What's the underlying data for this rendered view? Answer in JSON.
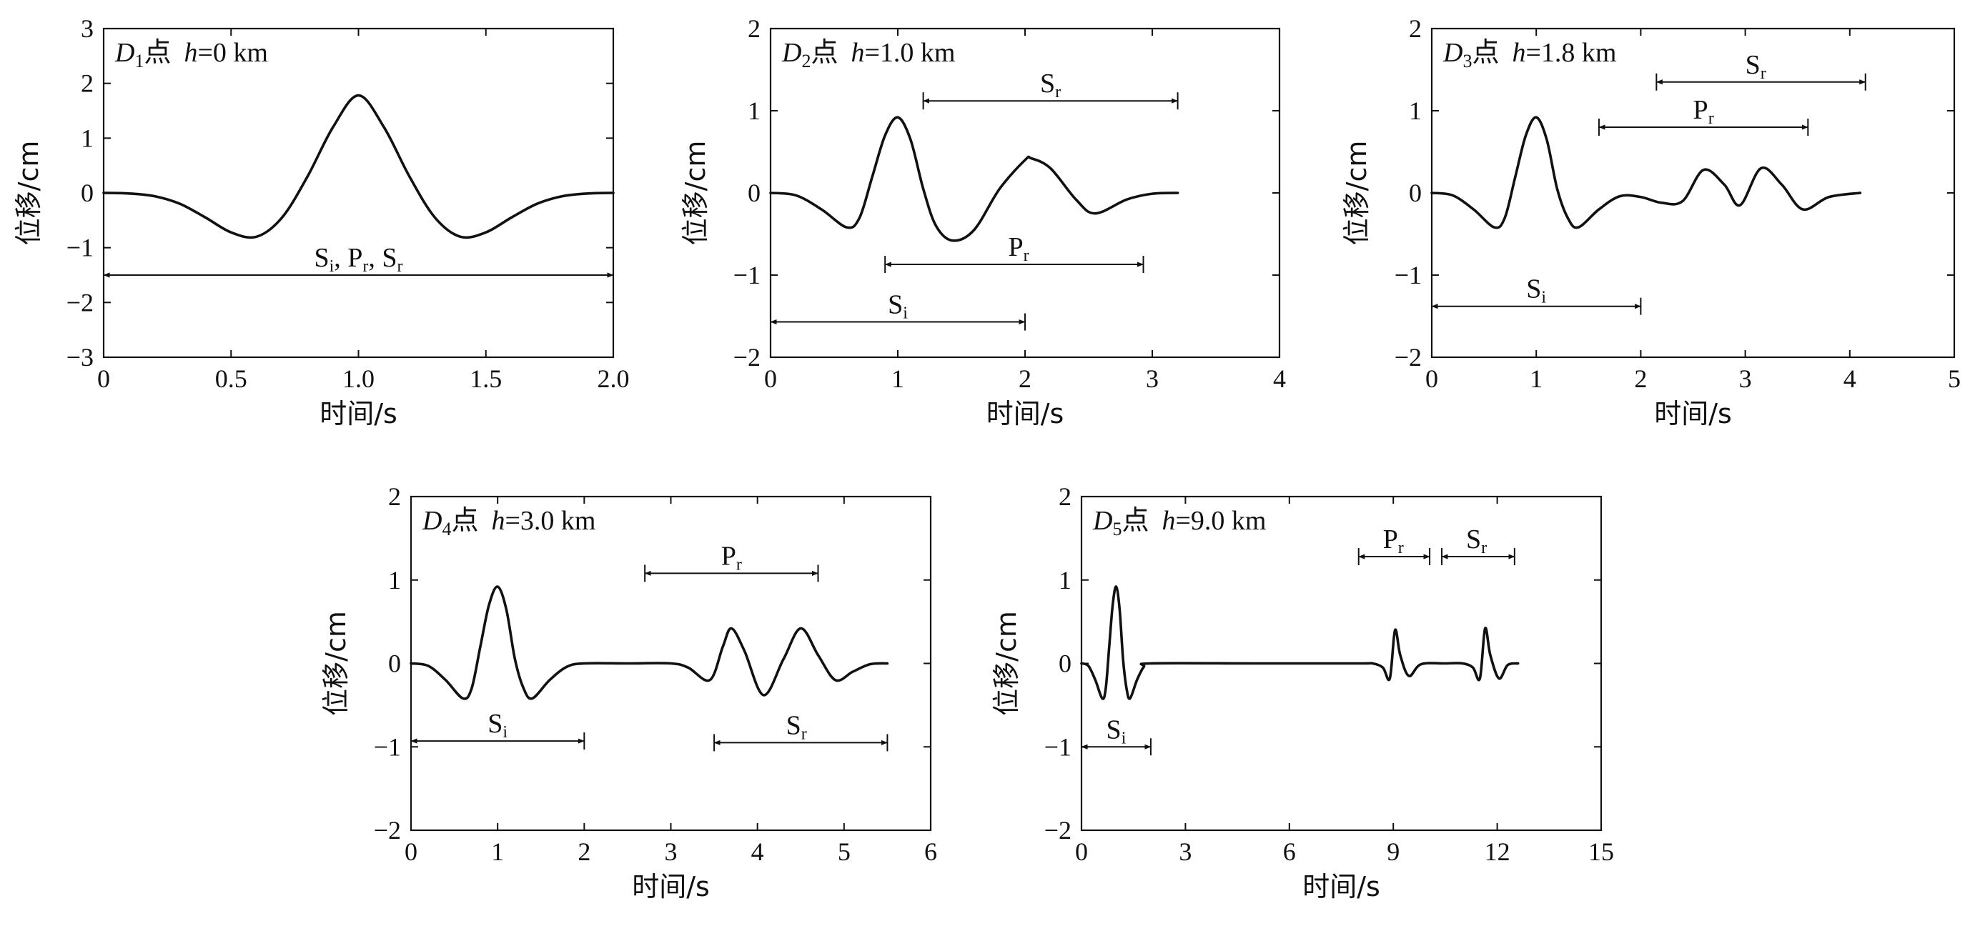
{
  "chart_data": [
    {
      "type": "line",
      "title": "",
      "panel": {
        "point": "D",
        "sub": "1",
        "suffix": "点",
        "h_var": "h",
        "h_text": "=0 km"
      },
      "xlabel": "时间/s",
      "ylabel": "位移/cm",
      "xlim": [
        0,
        2.0
      ],
      "ylim": [
        -3,
        3
      ],
      "xticks": [
        0,
        0.5,
        1.0,
        1.5,
        2.0
      ],
      "xtick_labels": [
        "0",
        "0.5",
        "1.0",
        "1.5",
        "2.0"
      ],
      "yticks": [
        -3,
        -2,
        -1,
        0,
        1,
        2,
        3
      ],
      "ytick_labels": [
        "−3",
        "−2",
        "−1",
        "0",
        "1",
        "2",
        "3"
      ],
      "series": [
        {
          "x": [
            0,
            0.1,
            0.2,
            0.3,
            0.4,
            0.5,
            0.6,
            0.7,
            0.8,
            0.9,
            1.0,
            1.1,
            1.2,
            1.3,
            1.4,
            1.5,
            1.6,
            1.7,
            1.8,
            1.9,
            2.0
          ],
          "y": [
            0,
            -0.01,
            -0.06,
            -0.2,
            -0.45,
            -0.72,
            -0.8,
            -0.45,
            0.3,
            1.2,
            1.78,
            1.2,
            0.3,
            -0.45,
            -0.8,
            -0.72,
            -0.45,
            -0.2,
            -0.06,
            -0.01,
            0
          ]
        }
      ],
      "annotations": [
        {
          "label": "S",
          "sub": "i",
          "rest": ", P",
          "sub2": "r",
          "rest2": ", S",
          "sub3": "r",
          "x0": 0,
          "x1": 2.0,
          "y": -1.5,
          "label_x": 1.0
        }
      ]
    },
    {
      "type": "line",
      "title": "",
      "panel": {
        "point": "D",
        "sub": "2",
        "suffix": "点",
        "h_var": "h",
        "h_text": "=1.0 km"
      },
      "xlabel": "时间/s",
      "ylabel": "位移/cm",
      "xlim": [
        0,
        4
      ],
      "ylim": [
        -2,
        2
      ],
      "xticks": [
        0,
        1,
        2,
        3,
        4
      ],
      "xtick_labels": [
        "0",
        "1",
        "2",
        "3",
        "4"
      ],
      "yticks": [
        -2,
        -1,
        0,
        1,
        2
      ],
      "ytick_labels": [
        "−2",
        "−1",
        "0",
        "1",
        "2"
      ],
      "series": [
        {
          "x": [
            0,
            0.2,
            0.4,
            0.6,
            0.7,
            0.8,
            0.9,
            1.0,
            1.1,
            1.2,
            1.3,
            1.43,
            1.6,
            1.8,
            2.0,
            2.05,
            2.2,
            2.4,
            2.55,
            2.8,
            3.0,
            3.2
          ],
          "y": [
            0,
            -0.03,
            -0.2,
            -0.42,
            -0.3,
            0.2,
            0.7,
            0.92,
            0.65,
            0.05,
            -0.4,
            -0.58,
            -0.45,
            0.05,
            0.4,
            0.42,
            0.3,
            -0.08,
            -0.25,
            -0.08,
            -0.01,
            0
          ]
        }
      ],
      "annotations": [
        {
          "label": "S",
          "sub": "r",
          "x0": 1.2,
          "x1": 3.2,
          "y": 1.12,
          "label_x": 2.2
        },
        {
          "label": "P",
          "sub": "r",
          "x0": 0.9,
          "x1": 2.93,
          "y": -0.87,
          "label_x": 1.95
        },
        {
          "label": "S",
          "sub": "i",
          "x0": 0,
          "x1": 2.0,
          "y": -1.57,
          "label_x": 1.0
        }
      ]
    },
    {
      "type": "line",
      "title": "",
      "panel": {
        "point": "D",
        "sub": "3",
        "suffix": "点",
        "h_var": "h",
        "h_text": "=1.8 km"
      },
      "xlabel": "时间/s",
      "ylabel": "位移/cm",
      "xlim": [
        0,
        5
      ],
      "ylim": [
        -2,
        2
      ],
      "xticks": [
        0,
        1,
        2,
        3,
        4,
        5
      ],
      "xtick_labels": [
        "0",
        "1",
        "2",
        "3",
        "4",
        "5"
      ],
      "yticks": [
        -2,
        -1,
        0,
        1,
        2
      ],
      "ytick_labels": [
        "−2",
        "−1",
        "0",
        "1",
        "2"
      ],
      "series": [
        {
          "x": [
            0,
            0.2,
            0.4,
            0.6,
            0.7,
            0.8,
            0.9,
            1.0,
            1.1,
            1.2,
            1.3,
            1.4,
            1.6,
            1.8,
            2.0,
            2.2,
            2.4,
            2.6,
            2.8,
            2.95,
            3.15,
            3.35,
            3.55,
            3.8,
            4.1
          ],
          "y": [
            0,
            -0.03,
            -0.2,
            -0.42,
            -0.3,
            0.2,
            0.7,
            0.92,
            0.65,
            0.05,
            -0.3,
            -0.42,
            -0.2,
            -0.04,
            -0.05,
            -0.12,
            -0.1,
            0.28,
            0.1,
            -0.15,
            0.3,
            0.1,
            -0.2,
            -0.05,
            0
          ]
        }
      ],
      "annotations": [
        {
          "label": "S",
          "sub": "r",
          "x0": 2.15,
          "x1": 4.15,
          "y": 1.35,
          "label_x": 3.1
        },
        {
          "label": "P",
          "sub": "r",
          "x0": 1.6,
          "x1": 3.6,
          "y": 0.8,
          "label_x": 2.6
        },
        {
          "label": "S",
          "sub": "i",
          "x0": 0,
          "x1": 2.0,
          "y": -1.38,
          "label_x": 1.0
        }
      ]
    },
    {
      "type": "line",
      "title": "",
      "panel": {
        "point": "D",
        "sub": "4",
        "suffix": "点",
        "h_var": "h",
        "h_text": "=3.0 km"
      },
      "xlabel": "时间/s",
      "ylabel": "位移/cm",
      "xlim": [
        0,
        6
      ],
      "ylim": [
        -2,
        2
      ],
      "xticks": [
        0,
        1,
        2,
        3,
        4,
        5,
        6
      ],
      "xtick_labels": [
        "0",
        "1",
        "2",
        "3",
        "4",
        "5",
        "6"
      ],
      "yticks": [
        -2,
        -1,
        0,
        1,
        2
      ],
      "ytick_labels": [
        "−2",
        "−1",
        "0",
        "1",
        "2"
      ],
      "series": [
        {
          "x": [
            0,
            0.2,
            0.4,
            0.6,
            0.7,
            0.8,
            0.9,
            1.0,
            1.1,
            1.2,
            1.3,
            1.4,
            1.6,
            1.8,
            2.0,
            2.5,
            3.0,
            3.2,
            3.45,
            3.6,
            3.7,
            3.85,
            4.07,
            4.3,
            4.5,
            4.7,
            4.9,
            5.1,
            5.3,
            5.5
          ],
          "y": [
            0,
            -0.03,
            -0.2,
            -0.42,
            -0.3,
            0.2,
            0.7,
            0.92,
            0.65,
            0.05,
            -0.3,
            -0.42,
            -0.2,
            -0.04,
            0,
            0,
            0,
            -0.05,
            -0.2,
            0.2,
            0.42,
            0.15,
            -0.38,
            0.05,
            0.42,
            0.1,
            -0.2,
            -0.1,
            -0.01,
            0
          ]
        }
      ],
      "annotations": [
        {
          "label": "P",
          "sub": "r",
          "x0": 2.7,
          "x1": 4.7,
          "y": 1.08,
          "label_x": 3.7
        },
        {
          "label": "S",
          "sub": "i",
          "x0": 0,
          "x1": 2.0,
          "y": -0.93,
          "label_x": 1.0
        },
        {
          "label": "S",
          "sub": "r",
          "x0": 3.5,
          "x1": 5.5,
          "y": -0.95,
          "label_x": 4.45
        }
      ]
    },
    {
      "type": "line",
      "title": "",
      "panel": {
        "point": "D",
        "sub": "5",
        "suffix": "点",
        "h_var": "h",
        "h_text": "=9.0 km"
      },
      "xlabel": "时间/s",
      "ylabel": "位移/cm",
      "xlim": [
        0,
        15
      ],
      "ylim": [
        -2,
        2
      ],
      "xticks": [
        0,
        3,
        6,
        9,
        12,
        15
      ],
      "xtick_labels": [
        "0",
        "3",
        "6",
        "9",
        "12",
        "15"
      ],
      "yticks": [
        -2,
        -1,
        0,
        1,
        2
      ],
      "ytick_labels": [
        "−2",
        "−1",
        "0",
        "1",
        "2"
      ],
      "series": [
        {
          "x": [
            0,
            0.2,
            0.4,
            0.6,
            0.7,
            0.8,
            0.9,
            1.0,
            1.1,
            1.2,
            1.3,
            1.4,
            1.6,
            1.8,
            2.0,
            5.0,
            8.0,
            8.4,
            8.7,
            8.9,
            9.05,
            9.2,
            9.45,
            9.8,
            10.5,
            11.0,
            11.3,
            11.5,
            11.65,
            11.8,
            12.05,
            12.3,
            12.6
          ],
          "y": [
            0,
            -0.03,
            -0.2,
            -0.42,
            -0.3,
            0.2,
            0.7,
            0.92,
            0.65,
            0.05,
            -0.3,
            -0.42,
            -0.2,
            -0.04,
            0,
            0,
            0,
            0,
            -0.05,
            -0.18,
            0.4,
            0.1,
            -0.15,
            -0.01,
            0,
            0,
            -0.05,
            -0.18,
            0.42,
            0.1,
            -0.18,
            -0.02,
            0
          ]
        }
      ],
      "annotations": [
        {
          "label": "P",
          "sub": "r",
          "x0": 8.0,
          "x1": 10.05,
          "y": 1.28,
          "label_x": 9.0
        },
        {
          "label": "S",
          "sub": "r",
          "x0": 10.4,
          "x1": 12.5,
          "y": 1.28,
          "label_x": 11.4
        },
        {
          "label": "S",
          "sub": "i",
          "x0": 0,
          "x1": 2.0,
          "y": -1.0,
          "label_x": 1.0
        }
      ]
    }
  ]
}
